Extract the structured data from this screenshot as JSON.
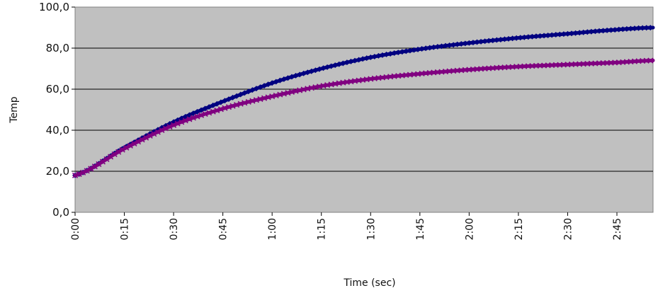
{
  "chart_data": {
    "type": "line",
    "title": "",
    "xlabel": "Time (sec)",
    "ylabel": "Temp",
    "x_unit": "seconds",
    "xlim": [
      0,
      176
    ],
    "ylim": [
      0,
      100
    ],
    "y_ticks": [
      0,
      20,
      40,
      60,
      80,
      100
    ],
    "y_tick_labels": [
      "0,0",
      "20,0",
      "40,0",
      "60,0",
      "80,0",
      "100,0"
    ],
    "x_ticks": [
      0,
      15,
      30,
      45,
      60,
      75,
      90,
      105,
      120,
      135,
      150,
      165
    ],
    "x_tick_labels": [
      "0:00",
      "0:15",
      "0:30",
      "0:45",
      "1:00",
      "1:15",
      "1:30",
      "1:45",
      "2:00",
      "2:15",
      "2:30",
      "2:45"
    ],
    "grid": "horizontal",
    "background": "#c0c0c0",
    "legend": "none",
    "series": [
      {
        "color": "#000080",
        "marker": "diamond",
        "x": [
          0,
          15,
          30,
          45,
          60,
          75,
          90,
          105,
          120,
          135,
          150,
          165,
          176
        ],
        "values": [
          18.0,
          31.5,
          44.0,
          54.0,
          63.0,
          70.0,
          75.5,
          79.5,
          82.5,
          85.0,
          87.0,
          89.0,
          90.0
        ]
      },
      {
        "color": "#800080",
        "marker": "x",
        "x": [
          0,
          15,
          30,
          45,
          60,
          75,
          90,
          105,
          120,
          135,
          150,
          165,
          176
        ],
        "values": [
          18.0,
          31.0,
          42.5,
          50.5,
          56.5,
          61.5,
          65.0,
          67.5,
          69.5,
          71.0,
          72.0,
          73.0,
          74.0
        ]
      }
    ]
  }
}
